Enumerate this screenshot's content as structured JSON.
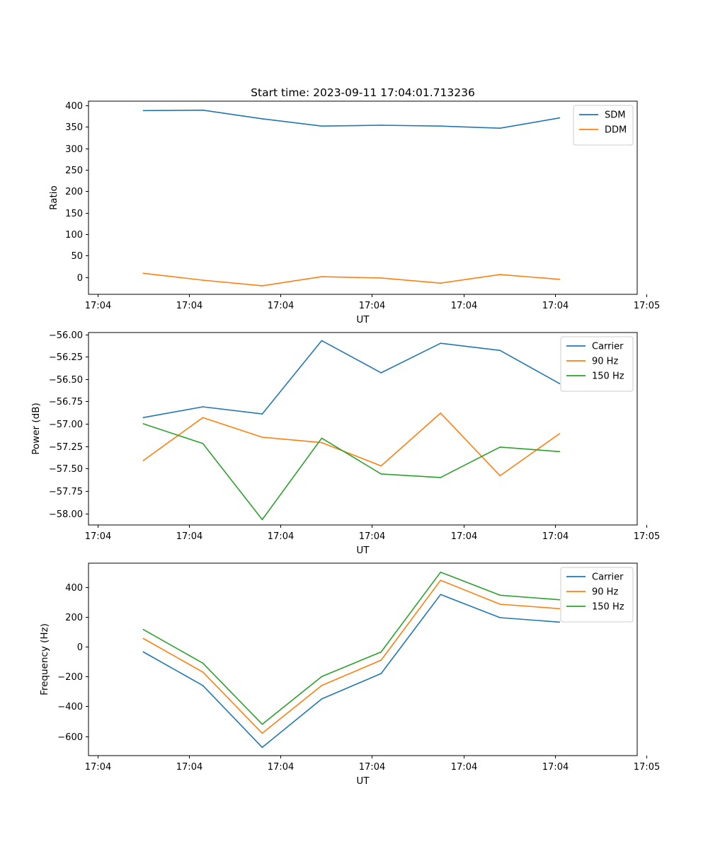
{
  "figure_title": "Start time: 2023-09-11 17:04:01.713236",
  "colors": {
    "c1": "#1f77b4",
    "c2": "#ff7f0e",
    "c3": "#2ca02c"
  },
  "chart_data": [
    {
      "type": "line",
      "title": "Start time: 2023-09-11 17:04:01.713236",
      "xlabel": "UT",
      "ylabel": "Ratio",
      "x": [
        0.5,
        1.15,
        1.8,
        2.45,
        3.1,
        3.75,
        4.4,
        5.05
      ],
      "xlim": [
        -0.1,
        5.9
      ],
      "xticks": [
        0,
        1,
        2,
        3,
        4,
        5,
        6
      ],
      "xtick_labels": [
        "17:04",
        "17:04",
        "17:04",
        "17:04",
        "17:04",
        "17:04",
        "17:05"
      ],
      "ylim": [
        -40,
        410
      ],
      "yticks": [
        0,
        50,
        100,
        150,
        200,
        250,
        300,
        350,
        400
      ],
      "ytick_labels": [
        "0",
        "50",
        "100",
        "150",
        "200",
        "250",
        "300",
        "350",
        "400"
      ],
      "legend": "upper right",
      "series": [
        {
          "name": "SDM",
          "color": "#1f77b4",
          "values": [
            388,
            389,
            369,
            352,
            354,
            352,
            347,
            371
          ]
        },
        {
          "name": "DDM",
          "color": "#ff7f0e",
          "values": [
            9,
            -7,
            -20,
            1,
            -2,
            -14,
            6,
            -5
          ]
        }
      ]
    },
    {
      "type": "line",
      "title": "",
      "xlabel": "UT",
      "ylabel": "Power (dB)",
      "x": [
        0.5,
        1.15,
        1.8,
        2.45,
        3.1,
        3.75,
        4.4,
        5.05
      ],
      "xlim": [
        -0.1,
        5.9
      ],
      "xticks": [
        0,
        1,
        2,
        3,
        4,
        5,
        6
      ],
      "xtick_labels": [
        "17:04",
        "17:04",
        "17:04",
        "17:04",
        "17:04",
        "17:04",
        "17:05"
      ],
      "ylim": [
        -58.13,
        -55.98
      ],
      "yticks": [
        -58.0,
        -57.75,
        -57.5,
        -57.25,
        -57.0,
        -56.75,
        -56.5,
        -56.25,
        -56.0
      ],
      "ytick_labels": [
        "−58.00",
        "−57.75",
        "−57.50",
        "−57.25",
        "−57.00",
        "−56.75",
        "−56.50",
        "−56.25",
        "−56.00"
      ],
      "legend": "upper right",
      "series": [
        {
          "name": "Carrier",
          "color": "#1f77b4",
          "values": [
            -56.93,
            -56.81,
            -56.89,
            -56.07,
            -56.43,
            -56.1,
            -56.18,
            -56.55
          ]
        },
        {
          "name": "90 Hz",
          "color": "#ff7f0e",
          "values": [
            -57.41,
            -56.93,
            -57.15,
            -57.21,
            -57.47,
            -56.88,
            -57.58,
            -57.11
          ]
        },
        {
          "name": "150 Hz",
          "color": "#2ca02c",
          "values": [
            -57.0,
            -57.22,
            -58.07,
            -57.16,
            -57.56,
            -57.6,
            -57.26,
            -57.31
          ]
        }
      ]
    },
    {
      "type": "line",
      "title": "",
      "xlabel": "UT",
      "ylabel": "Frequency (Hz)",
      "x": [
        0.5,
        1.15,
        1.8,
        2.45,
        3.1,
        3.75,
        4.4,
        5.05
      ],
      "xlim": [
        -0.1,
        5.9
      ],
      "xticks": [
        0,
        1,
        2,
        3,
        4,
        5,
        6
      ],
      "xtick_labels": [
        "17:04",
        "17:04",
        "17:04",
        "17:04",
        "17:04",
        "17:04",
        "17:05"
      ],
      "ylim": [
        -730,
        560
      ],
      "yticks": [
        -600,
        -400,
        -200,
        0,
        200,
        400
      ],
      "ytick_labels": [
        "−600",
        "−400",
        "−200",
        "0",
        "200",
        "400"
      ],
      "legend": "upper right",
      "series": [
        {
          "name": "Carrier",
          "color": "#1f77b4",
          "values": [
            -35,
            -260,
            -675,
            -350,
            -180,
            350,
            195,
            165
          ]
        },
        {
          "name": "90 Hz",
          "color": "#ff7f0e",
          "values": [
            55,
            -170,
            -580,
            -260,
            -90,
            445,
            285,
            255
          ]
        },
        {
          "name": "150 Hz",
          "color": "#2ca02c",
          "values": [
            115,
            -110,
            -520,
            -200,
            -35,
            500,
            345,
            315
          ]
        }
      ]
    }
  ]
}
